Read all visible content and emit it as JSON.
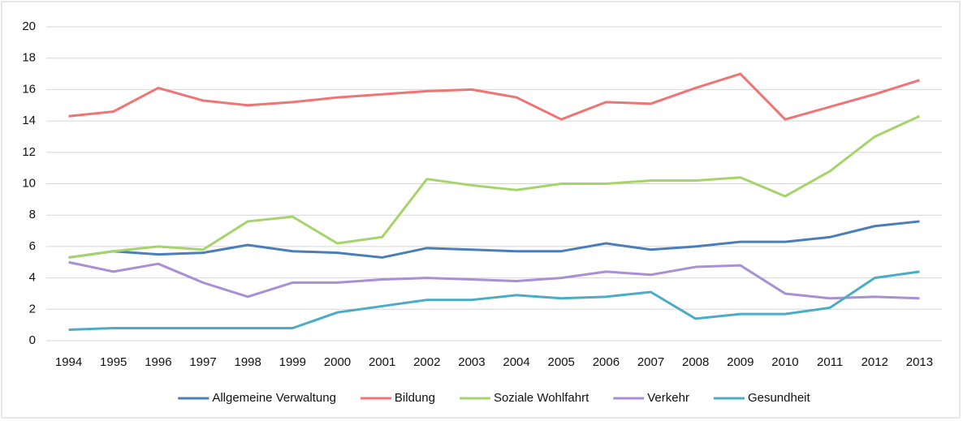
{
  "chart_data": {
    "type": "line",
    "categories": [
      "1994",
      "1995",
      "1996",
      "1997",
      "1998",
      "1999",
      "2000",
      "2001",
      "2002",
      "2003",
      "2004",
      "2005",
      "2006",
      "2007",
      "2008",
      "2009",
      "2010",
      "2011",
      "2012",
      "2013"
    ],
    "series": [
      {
        "name": "Allgemeine Verwaltung",
        "color": "#4a7ebb",
        "values": [
          5.3,
          5.7,
          5.5,
          5.6,
          6.1,
          5.7,
          5.6,
          5.3,
          5.9,
          5.8,
          5.7,
          5.7,
          6.2,
          5.8,
          6.0,
          6.3,
          6.3,
          6.6,
          7.3,
          7.6
        ]
      },
      {
        "name": "Bildung",
        "color": "#f07474",
        "values": [
          14.3,
          14.6,
          16.1,
          15.3,
          15.0,
          15.2,
          15.5,
          15.7,
          15.9,
          16.0,
          15.5,
          14.1,
          15.2,
          15.1,
          16.1,
          17.0,
          14.1,
          14.9,
          15.7,
          16.6
        ]
      },
      {
        "name": "Soziale Wohlfahrt",
        "color": "#a6d46b",
        "values": [
          5.3,
          5.7,
          6.0,
          5.8,
          7.6,
          7.9,
          6.2,
          6.6,
          10.3,
          9.9,
          9.6,
          10.0,
          10.0,
          10.2,
          10.2,
          10.4,
          9.2,
          10.8,
          13.0,
          14.3
        ]
      },
      {
        "name": "Verkehr",
        "color": "#a98fd4",
        "values": [
          5.0,
          4.4,
          4.9,
          3.7,
          2.8,
          3.7,
          3.7,
          3.9,
          4.0,
          3.9,
          3.8,
          4.0,
          4.4,
          4.2,
          4.7,
          4.8,
          3.0,
          2.7,
          2.8,
          2.7
        ]
      },
      {
        "name": "Gesundheit",
        "color": "#4bacc6",
        "values": [
          0.7,
          0.8,
          0.8,
          0.8,
          0.8,
          0.8,
          1.8,
          2.2,
          2.6,
          2.6,
          2.9,
          2.7,
          2.8,
          3.1,
          1.4,
          1.7,
          1.7,
          2.1,
          4.0,
          4.4
        ]
      }
    ],
    "ylim": [
      0,
      20
    ],
    "yticks": [
      0,
      2,
      4,
      6,
      8,
      10,
      12,
      14,
      16,
      18,
      20
    ],
    "grid": true,
    "legend": "bottom"
  }
}
